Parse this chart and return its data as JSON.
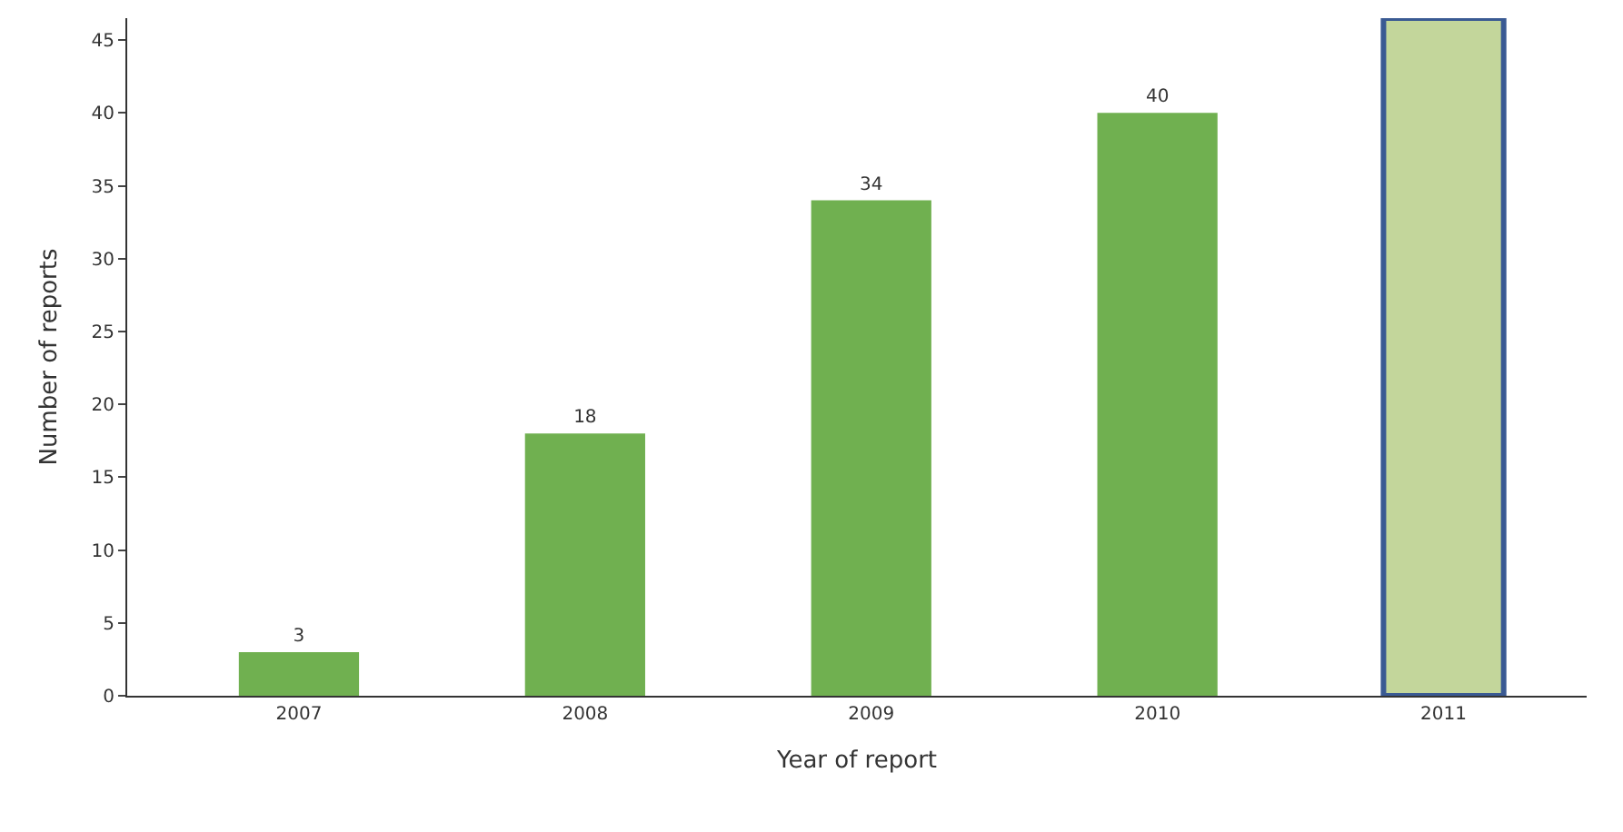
{
  "chart_data": {
    "type": "bar",
    "categories": [
      "2007",
      "2008",
      "2009",
      "2010",
      "2011"
    ],
    "values": [
      3,
      18,
      34,
      40,
      46.5
    ],
    "colors": [
      "#70b050",
      "#70b050",
      "#70b050",
      "#70b050",
      "#c3d69b"
    ],
    "value_labels": [
      "3",
      "18",
      "34",
      "40",
      null
    ],
    "xlabel": "Year of report",
    "ylabel": "Number of reports",
    "ylim": [
      0,
      46.5
    ],
    "yticks": [
      0,
      5,
      10,
      15,
      20,
      25,
      30,
      35,
      40,
      45
    ],
    "legend": false
  }
}
